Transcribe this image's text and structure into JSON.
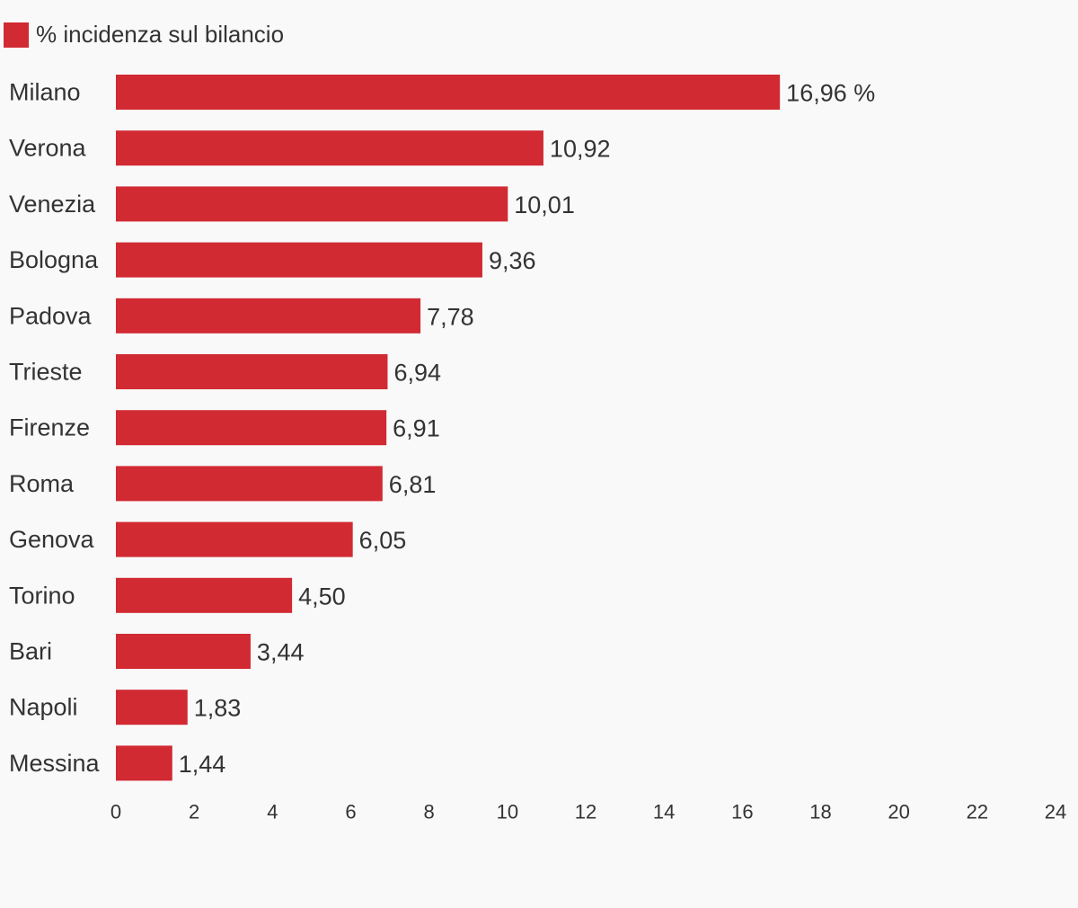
{
  "chart_data": {
    "type": "bar",
    "orientation": "horizontal",
    "legend": {
      "position": "top-left",
      "entries": [
        {
          "label": "% incidenza sul bilancio",
          "color": "#d12a33"
        }
      ]
    },
    "series": [
      {
        "name": "% incidenza sul bilancio",
        "color": "#d12a33",
        "values": [
          16.96,
          10.92,
          10.01,
          9.36,
          7.78,
          6.94,
          6.91,
          6.81,
          6.05,
          4.5,
          3.44,
          1.83,
          1.44
        ]
      }
    ],
    "categories": [
      "Milano",
      "Verona",
      "Venezia",
      "Bologna",
      "Padova",
      "Trieste",
      "Firenze",
      "Roma",
      "Genova",
      "Torino",
      "Bari",
      "Napoli",
      "Messina"
    ],
    "value_labels": [
      "16,96 %",
      "10,92",
      "10,01",
      "9,36",
      "7,78",
      "6,94",
      "6,91",
      "6,81",
      "6,05",
      "4,50",
      "3,44",
      "1,83",
      "1,44"
    ],
    "xlim": [
      0,
      24
    ],
    "xticks": [
      0,
      2,
      4,
      6,
      8,
      10,
      12,
      14,
      16,
      18,
      20,
      22,
      24
    ],
    "xtick_labels": [
      "0",
      "2",
      "4",
      "6",
      "8",
      "10",
      "12",
      "14",
      "16",
      "18",
      "20",
      "22",
      "24"
    ],
    "grid": false,
    "title": "",
    "xlabel": "",
    "ylabel": ""
  },
  "colors": {
    "background": "#f9f9f9",
    "bar": "#d12a33",
    "text": "#333333"
  }
}
